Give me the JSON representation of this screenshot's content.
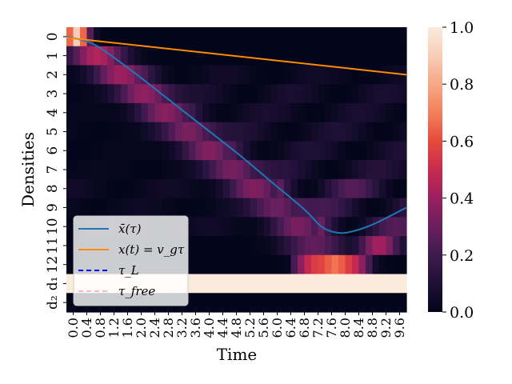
{
  "chart_data": {
    "type": "heatmap",
    "title": "",
    "xlabel": "Time",
    "ylabel": "Densities",
    "x_ticks": [
      "0.0",
      "0.4",
      "0.8",
      "1.2",
      "1.6",
      "2.0",
      "2.4",
      "2.8",
      "3.2",
      "3.6",
      "4.0",
      "4.4",
      "4.8",
      "5.2",
      "5.6",
      "6.0",
      "6.4",
      "6.8",
      "7.2",
      "7.6",
      "8.0",
      "8.4",
      "8.8",
      "9.2",
      "9.6"
    ],
    "y_ticks": [
      "0",
      "1",
      "2",
      "3",
      "4",
      "5",
      "6",
      "7",
      "8",
      "9",
      "10",
      "11",
      "12",
      "$d_1$",
      "$d_2$"
    ],
    "y_tick_display": [
      "0",
      "1",
      "2",
      "3",
      "4",
      "5",
      "6",
      "7",
      "8",
      "9",
      "10",
      "11",
      "12",
      "d₁",
      "d₂"
    ],
    "x_range": [
      0,
      10
    ],
    "n_rows": 15,
    "row_peak_time": [
      0.3,
      0.9,
      1.6,
      2.3,
      2.9,
      3.6,
      4.2,
      4.9,
      5.5,
      6.2,
      6.8,
      7.3,
      7.9,
      null,
      null
    ],
    "row_peak_value": [
      0.9,
      0.45,
      0.4,
      0.38,
      0.35,
      0.33,
      0.33,
      0.32,
      0.3,
      0.3,
      0.28,
      0.28,
      0.65,
      0.02,
      0.0
    ],
    "row_secondary_value": [
      0.0,
      0.0,
      0.05,
      0.08,
      0.08,
      0.1,
      0.1,
      0.12,
      0.25,
      0.2,
      0.25,
      0.42,
      0.1,
      1.0,
      0.0
    ],
    "colorbar": {
      "min": 0.0,
      "max": 1.0,
      "ticks": [
        "0.0",
        "0.2",
        "0.4",
        "0.6",
        "0.8",
        "1.0"
      ],
      "colormap": "rocket"
    },
    "series": [
      {
        "name": "$\\bar{x}(\\tau)$",
        "display": "x̄(τ)",
        "color": "#1f77b4",
        "style": "solid",
        "x": [
          0,
          0.5,
          1,
          2,
          3,
          4,
          5,
          6,
          7,
          7.5,
          7.9,
          8.3,
          9,
          10
        ],
        "y": [
          0,
          0.2,
          0.6,
          1.9,
          3.3,
          4.7,
          6.1,
          7.6,
          9.1,
          10.0,
          10.3,
          10.3,
          9.9,
          9.0
        ]
      },
      {
        "name": "$x(t) = v_g\\tau$",
        "display": "x(t) = v_gτ",
        "color": "#ff8c00",
        "style": "solid",
        "x": [
          0,
          10
        ],
        "y": [
          0.05,
          2.0
        ]
      },
      {
        "name": "$\\tau_L$",
        "display": "τ_L",
        "color": "#0000ff",
        "style": "dashed"
      },
      {
        "name": "$\\tau_{free}$",
        "display": "τ_free",
        "color": "#ffb6c1",
        "style": "dashed"
      }
    ],
    "legend_position": "lower-left",
    "grid": false
  }
}
